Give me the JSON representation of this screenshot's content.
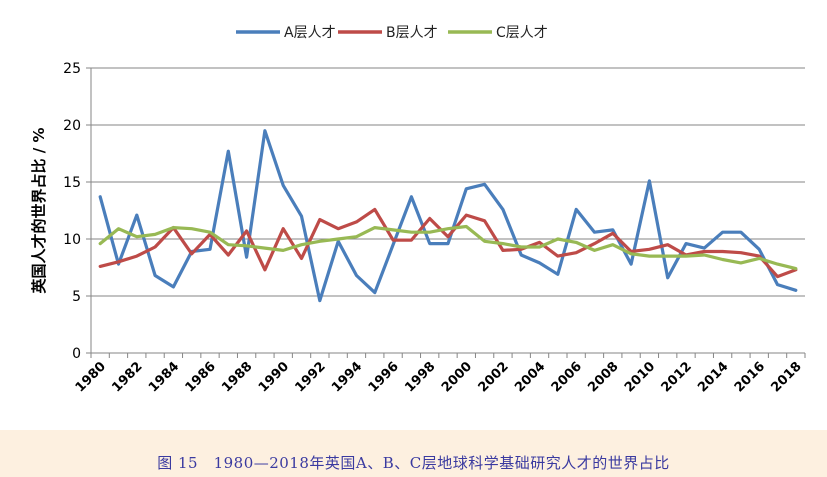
{
  "chart_data": {
    "type": "line",
    "ylabel": "英国人才的世界占比 / %",
    "ylim": [
      0,
      25
    ],
    "yticks": [
      0,
      5,
      10,
      15,
      20,
      25
    ],
    "x": [
      1980,
      1981,
      1982,
      1983,
      1984,
      1985,
      1986,
      1987,
      1988,
      1989,
      1990,
      1991,
      1992,
      1993,
      1994,
      1995,
      1996,
      1997,
      1998,
      1999,
      2000,
      2001,
      2002,
      2003,
      2004,
      2005,
      2006,
      2007,
      2008,
      2009,
      2010,
      2011,
      2012,
      2013,
      2014,
      2015,
      2016,
      2017,
      2018
    ],
    "xtick_labels": [
      "1980",
      "1982",
      "1984",
      "1986",
      "1988",
      "1990",
      "1992",
      "1994",
      "1996",
      "1998",
      "2000",
      "2002",
      "2004",
      "2006",
      "2008",
      "2010",
      "2012",
      "2014",
      "2016",
      "2018"
    ],
    "series": [
      {
        "name": "A层人才",
        "color": "#4a7ebb",
        "values": [
          13.7,
          7.8,
          12.1,
          6.8,
          5.8,
          8.9,
          9.1,
          17.7,
          8.4,
          19.5,
          14.7,
          12.0,
          4.6,
          9.8,
          6.8,
          5.3,
          9.5,
          13.7,
          9.6,
          9.6,
          14.4,
          14.8,
          12.6,
          8.6,
          7.9,
          6.9,
          12.6,
          10.6,
          10.8,
          7.8,
          15.1,
          6.6,
          9.6,
          9.2,
          10.6,
          10.6,
          9.1,
          6.0,
          5.5
        ]
      },
      {
        "name": "B层人才",
        "color": "#be4b48",
        "values": [
          7.6,
          8.0,
          8.5,
          9.3,
          11.0,
          8.7,
          10.4,
          8.6,
          10.7,
          7.3,
          10.9,
          8.3,
          11.7,
          10.9,
          11.5,
          12.6,
          9.9,
          9.9,
          11.8,
          10.2,
          12.1,
          11.6,
          9.0,
          9.1,
          9.7,
          8.5,
          8.8,
          9.6,
          10.5,
          8.9,
          9.1,
          9.5,
          8.6,
          8.9,
          8.9,
          8.8,
          8.5,
          6.7,
          7.3
        ]
      },
      {
        "name": "C层人才",
        "color": "#98b954",
        "values": [
          9.6,
          10.9,
          10.2,
          10.4,
          11.0,
          10.9,
          10.6,
          9.5,
          9.4,
          9.2,
          9.0,
          9.5,
          9.8,
          10.0,
          10.2,
          11.0,
          10.8,
          10.6,
          10.6,
          10.9,
          11.1,
          9.8,
          9.6,
          9.3,
          9.3,
          10.0,
          9.7,
          9.0,
          9.5,
          8.7,
          8.5,
          8.5,
          8.5,
          8.6,
          8.2,
          7.9,
          8.3,
          7.8,
          7.4
        ]
      }
    ],
    "legend_position": "top",
    "grid": "horizontal"
  },
  "caption": "图 15　1980—2018年英国A、B、C层地球科学基础研究人才的世界占比"
}
